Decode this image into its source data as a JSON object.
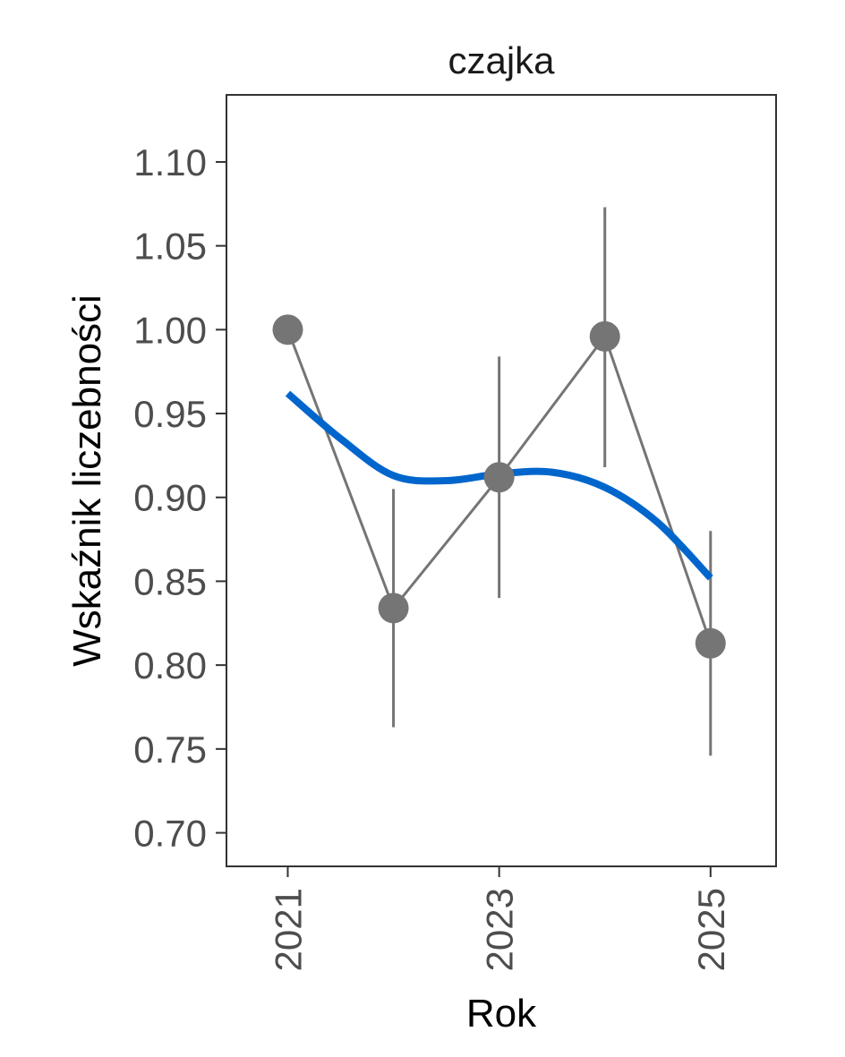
{
  "chart_data": {
    "type": "line",
    "facet_title": "czajka",
    "xlabel": "Rok",
    "ylabel": "Wskaźnik liczebności",
    "x_ticks": [
      "2021",
      "2023",
      "2025"
    ],
    "x_tick_values": [
      2021,
      2023,
      2025
    ],
    "y_ticks": [
      "0.70",
      "0.75",
      "0.80",
      "0.85",
      "0.90",
      "0.95",
      "1.00",
      "1.05",
      "1.10"
    ],
    "y_tick_values": [
      0.7,
      0.75,
      0.8,
      0.85,
      0.9,
      0.95,
      1.0,
      1.05,
      1.1
    ],
    "xlim": [
      2020.42,
      2025.62
    ],
    "ylim": [
      0.68,
      1.14
    ],
    "grid": false,
    "series": [
      {
        "type": "line-points",
        "color": "#757575",
        "points": [
          {
            "x": 2021,
            "y": 1.0,
            "lower": null,
            "upper": null
          },
          {
            "x": 2022,
            "y": 0.834,
            "lower": 0.763,
            "upper": 0.905
          },
          {
            "x": 2023,
            "y": 0.912,
            "lower": 0.84,
            "upper": 0.984
          },
          {
            "x": 2024,
            "y": 0.996,
            "lower": 0.918,
            "upper": 1.073
          },
          {
            "x": 2025,
            "y": 0.813,
            "lower": 0.746,
            "upper": 0.88
          }
        ]
      },
      {
        "type": "smooth-trend",
        "color": "#0066cc",
        "x": [
          2021,
          2021.5,
          2022,
          2022.5,
          2023,
          2023.5,
          2024,
          2024.5,
          2025
        ],
        "y": [
          0.962,
          0.935,
          0.913,
          0.91,
          0.914,
          0.915,
          0.906,
          0.885,
          0.852
        ]
      }
    ]
  }
}
